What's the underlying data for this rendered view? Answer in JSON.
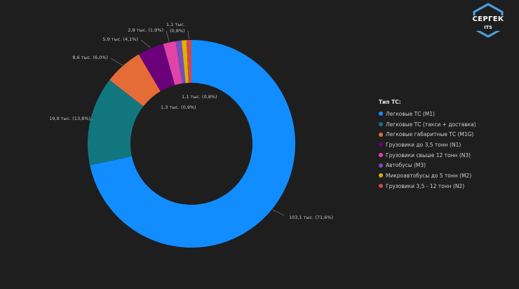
{
  "logo": {
    "title": "СЕРГЕК",
    "subtitle": "ITS"
  },
  "legend_title": "Тип ТС:",
  "colors": {
    "background": "#1e1e1f",
    "logo_frame": "#4aa3df"
  },
  "chart_data": {
    "type": "pie",
    "donut": true,
    "categories": [
      "Легковые ТС (M1)",
      "Легковые ТС (такси + доставка)",
      "Легковые габаритные ТС (M1G)",
      "Грузовики до 3,5 тонн (N1)",
      "Грузовики свыше 12 тонн (N3)",
      "Автобусы (M3)",
      "Микроавтобусы до 5 тонн (M2)",
      "Грузовики 3,5 - 12 тонн (N2)"
    ],
    "values": [
      103.1,
      19.9,
      8.6,
      5.9,
      2.8,
      1.3,
      1.1,
      1.1
    ],
    "percents": [
      71.6,
      13.8,
      6.0,
      4.1,
      1.9,
      0.9,
      0.8,
      0.8
    ],
    "data_labels": [
      "103,1 тыс. (71,6%)",
      "19,9 тыс. (13,8%)",
      "8,6 тыс. (6,0%)",
      "5,9 тыс. (4,1%)",
      "2,8 тыс. (1,9%)",
      "1,3 тыс. (0,9%)",
      "1,1 тыс. (0,8%)",
      "1,1 тыс. (0,8%)"
    ],
    "colors": [
      "#118dff",
      "#12767f",
      "#e66c37",
      "#6b007b",
      "#e044a7",
      "#744ec2",
      "#d9b300",
      "#d64550"
    ],
    "legend_title": "Тип ТС:",
    "legend_position": "right"
  }
}
